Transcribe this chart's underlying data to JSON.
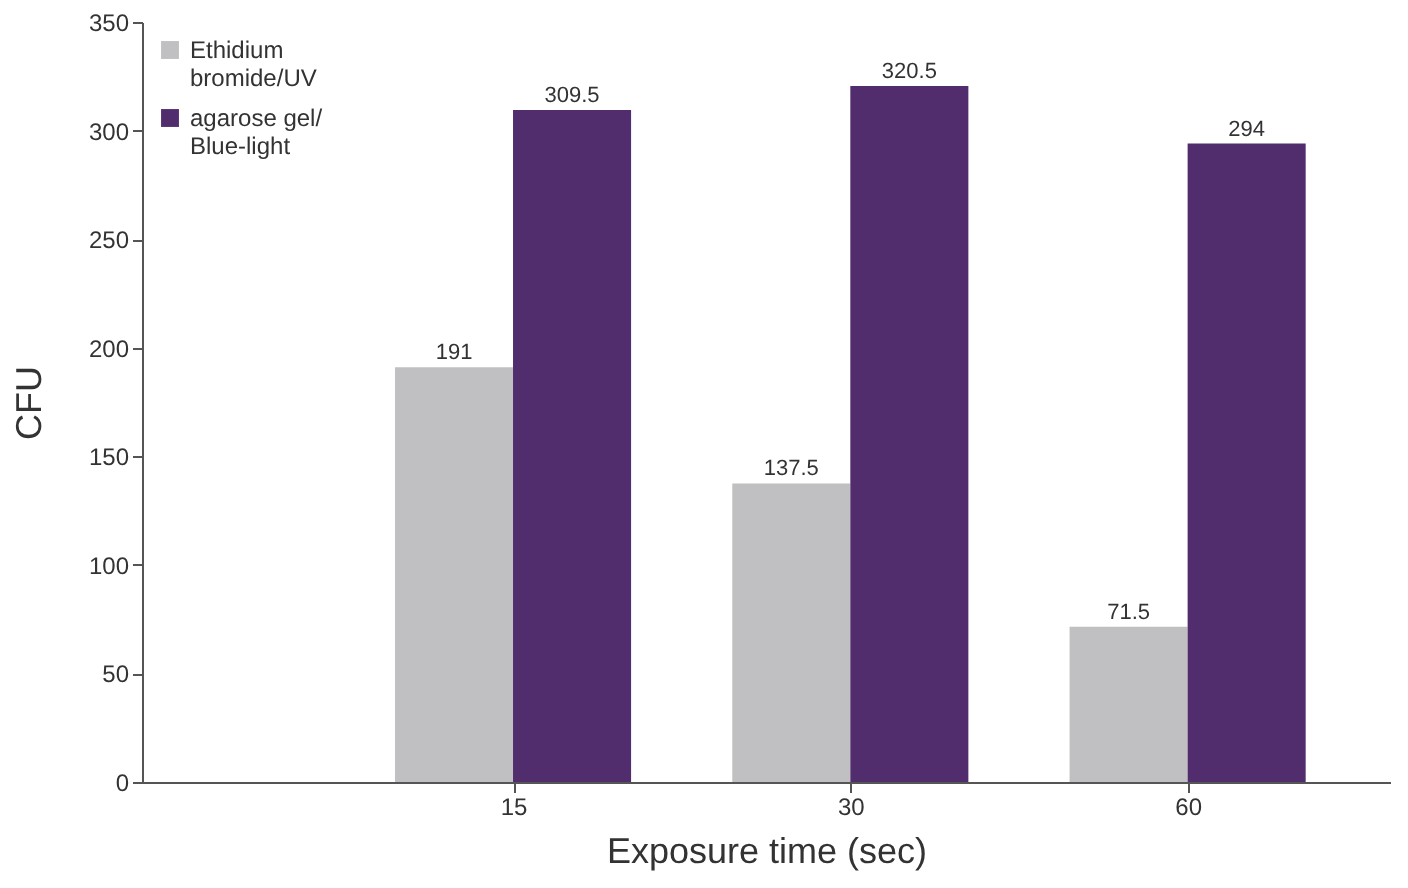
{
  "chart_data": {
    "type": "bar",
    "xlabel": "Exposure time (sec)",
    "ylabel": "CFU",
    "categories": [
      "15",
      "30",
      "60"
    ],
    "series": [
      {
        "name": "Ethidium bromide/UV",
        "color": "#c0c0c2",
        "values": [
          191,
          137.5,
          71.5
        ]
      },
      {
        "name": "agarose gel/Blue-light",
        "color": "#512d6d",
        "values": [
          309.5,
          320.5,
          294
        ]
      }
    ],
    "ylim": [
      0,
      350
    ],
    "yticks": [
      0,
      50,
      100,
      150,
      200,
      250,
      300,
      350
    ],
    "grid": false,
    "legend": "top left",
    "data_labels": true
  }
}
